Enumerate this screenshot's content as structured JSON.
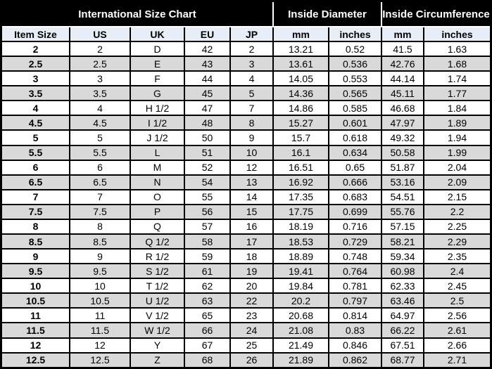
{
  "colors": {
    "group_header_bg": "#000000",
    "group_header_text": "#ffffff",
    "column_header_bg": "#e7eef7",
    "row_alt_bg": "#d9d9d9",
    "row_bg": "#ffffff",
    "border": "#000000"
  },
  "chart_data": {
    "type": "table",
    "title": "International Size Chart",
    "column_groups": [
      {
        "label": "International Size Chart",
        "colspan": 5
      },
      {
        "label": "Inside Diameter",
        "colspan": 2
      },
      {
        "label": "Inside Circumference",
        "colspan": 2
      }
    ],
    "columns": [
      "Item Size",
      "US",
      "UK",
      "EU",
      "JP",
      "mm",
      "inches",
      "mm",
      "inches"
    ],
    "rows": [
      [
        "2",
        "2",
        "D",
        "42",
        "2",
        "13.21",
        "0.52",
        "41.5",
        "1.63"
      ],
      [
        "2.5",
        "2.5",
        "E",
        "43",
        "3",
        "13.61",
        "0.536",
        "42.76",
        "1.68"
      ],
      [
        "3",
        "3",
        "F",
        "44",
        "4",
        "14.05",
        "0.553",
        "44.14",
        "1.74"
      ],
      [
        "3.5",
        "3.5",
        "G",
        "45",
        "5",
        "14.36",
        "0.565",
        "45.11",
        "1.77"
      ],
      [
        "4",
        "4",
        "H 1/2",
        "47",
        "7",
        "14.86",
        "0.585",
        "46.68",
        "1.84"
      ],
      [
        "4.5",
        "4.5",
        "I 1/2",
        "48",
        "8",
        "15.27",
        "0.601",
        "47.97",
        "1.89"
      ],
      [
        "5",
        "5",
        "J 1/2",
        "50",
        "9",
        "15.7",
        "0.618",
        "49.32",
        "1.94"
      ],
      [
        "5.5",
        "5.5",
        "L",
        "51",
        "10",
        "16.1",
        "0.634",
        "50.58",
        "1.99"
      ],
      [
        "6",
        "6",
        "M",
        "52",
        "12",
        "16.51",
        "0.65",
        "51.87",
        "2.04"
      ],
      [
        "6.5",
        "6.5",
        "N",
        "54",
        "13",
        "16.92",
        "0.666",
        "53.16",
        "2.09"
      ],
      [
        "7",
        "7",
        "O",
        "55",
        "14",
        "17.35",
        "0.683",
        "54.51",
        "2.15"
      ],
      [
        "7.5",
        "7.5",
        "P",
        "56",
        "15",
        "17.75",
        "0.699",
        "55.76",
        "2.2"
      ],
      [
        "8",
        "8",
        "Q",
        "57",
        "16",
        "18.19",
        "0.716",
        "57.15",
        "2.25"
      ],
      [
        "8.5",
        "8.5",
        "Q 1/2",
        "58",
        "17",
        "18.53",
        "0.729",
        "58.21",
        "2.29"
      ],
      [
        "9",
        "9",
        "R 1/2",
        "59",
        "18",
        "18.89",
        "0.748",
        "59.34",
        "2.35"
      ],
      [
        "9.5",
        "9.5",
        "S 1/2",
        "61",
        "19",
        "19.41",
        "0.764",
        "60.98",
        "2.4"
      ],
      [
        "10",
        "10",
        "T 1/2",
        "62",
        "20",
        "19.84",
        "0.781",
        "62.33",
        "2.45"
      ],
      [
        "10.5",
        "10.5",
        "U 1/2",
        "63",
        "22",
        "20.2",
        "0.797",
        "63.46",
        "2.5"
      ],
      [
        "11",
        "11",
        "V 1/2",
        "65",
        "23",
        "20.68",
        "0.814",
        "64.97",
        "2.56"
      ],
      [
        "11.5",
        "11.5",
        "W 1/2",
        "66",
        "24",
        "21.08",
        "0.83",
        "66.22",
        "2.61"
      ],
      [
        "12",
        "12",
        "Y",
        "67",
        "25",
        "21.49",
        "0.846",
        "67.51",
        "2.66"
      ],
      [
        "12.5",
        "12.5",
        "Z",
        "68",
        "26",
        "21.89",
        "0.862",
        "68.77",
        "2.71"
      ]
    ]
  }
}
